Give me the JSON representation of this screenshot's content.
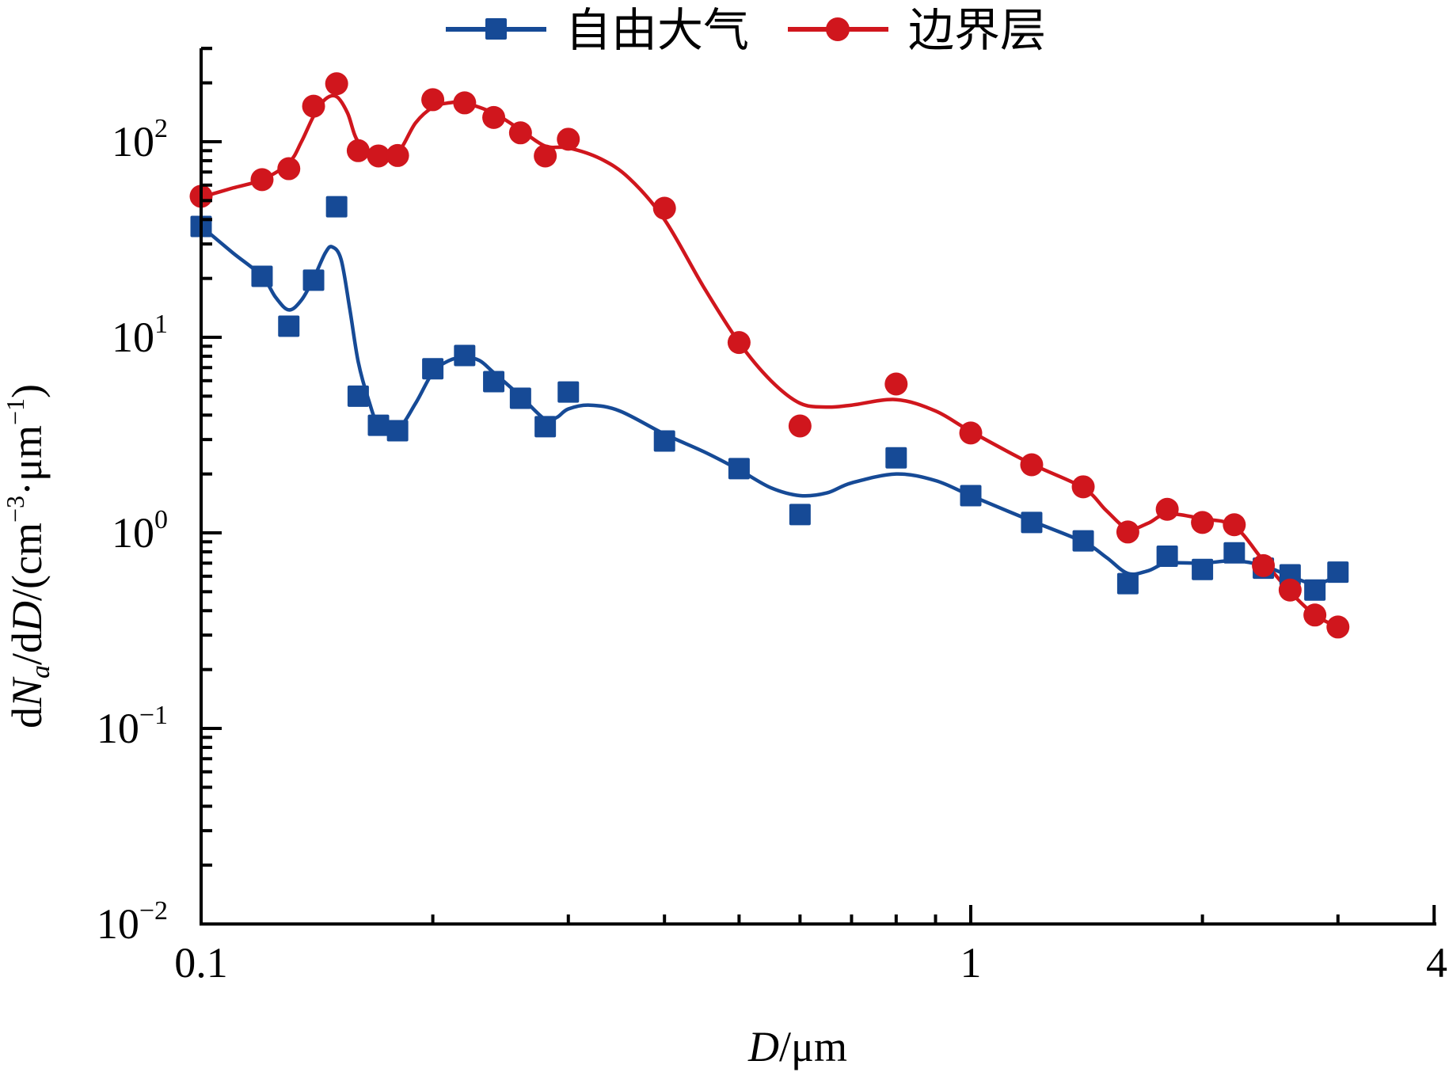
{
  "chart_data": {
    "type": "line",
    "title": "",
    "xlabel": {
      "italic": "D",
      "rest": "/μm"
    },
    "ylabel": {
      "p1": "d",
      "p2": "N",
      "p3": "a",
      "p4": "/d",
      "p5": "D",
      "p6": "/(cm",
      "p7": "−3",
      "p8": "·μm",
      "p9": "−1",
      "p10": ")"
    },
    "xscale": "log",
    "yscale": "log",
    "xlim": [
      0.1,
      4
    ],
    "ylim": [
      0.01,
      300
    ],
    "x_ticks": [
      {
        "value": 0.1,
        "label": "0.1"
      },
      {
        "value": 1,
        "label": "1"
      },
      {
        "value": 4,
        "label": "4"
      }
    ],
    "y_ticks": [
      {
        "value": 100,
        "base": "10",
        "exp": "2"
      },
      {
        "value": 10,
        "base": "10",
        "exp": "1"
      },
      {
        "value": 1,
        "base": "10",
        "exp": "0"
      },
      {
        "value": 0.1,
        "base": "10",
        "exp": "−1"
      },
      {
        "value": 0.01,
        "base": "10",
        "exp": "−2"
      }
    ],
    "grid": false,
    "legend_position": "top-center",
    "series": [
      {
        "name": "自由大气",
        "color": "#164a96",
        "marker": "square",
        "x": [
          0.1,
          0.12,
          0.13,
          0.14,
          0.15,
          0.16,
          0.17,
          0.18,
          0.2,
          0.22,
          0.24,
          0.26,
          0.28,
          0.3,
          0.4,
          0.5,
          0.6,
          0.8,
          1.0,
          1.2,
          1.4,
          1.6,
          1.8,
          2.0,
          2.2,
          2.4,
          2.6,
          2.8,
          3.0
        ],
        "y": [
          36.9,
          20.5,
          11.4,
          19.6,
          46.5,
          5.0,
          3.55,
          3.33,
          6.9,
          8.07,
          5.93,
          4.88,
          3.49,
          5.25,
          2.95,
          2.13,
          1.24,
          2.42,
          1.55,
          1.13,
          0.91,
          0.55,
          0.76,
          0.65,
          0.79,
          0.66,
          0.61,
          0.51,
          0.63
        ],
        "fit_curve": {
          "x": [
            0.1,
            0.11,
            0.12,
            0.125,
            0.13,
            0.135,
            0.14,
            0.145,
            0.148,
            0.152,
            0.156,
            0.16,
            0.165,
            0.17,
            0.18,
            0.19,
            0.2,
            0.21,
            0.22,
            0.23,
            0.24,
            0.26,
            0.28,
            0.29,
            0.3,
            0.32,
            0.35,
            0.4,
            0.45,
            0.5,
            0.55,
            0.6,
            0.65,
            0.7,
            0.8,
            0.9,
            1.0,
            1.2,
            1.4,
            1.5,
            1.6,
            1.7,
            1.8,
            2.0,
            2.2,
            2.4,
            2.6,
            2.8,
            3.0
          ],
          "y": [
            37,
            27,
            20.5,
            16,
            13.8,
            15.5,
            20,
            27,
            29,
            25,
            14,
            7.5,
            4.8,
            3.6,
            3.4,
            4.6,
            6.6,
            7.6,
            7.9,
            7.6,
            6.6,
            5.0,
            3.8,
            3.9,
            4.3,
            4.5,
            4.2,
            3.2,
            2.6,
            2.1,
            1.7,
            1.55,
            1.6,
            1.8,
            2.0,
            1.85,
            1.55,
            1.15,
            0.9,
            0.75,
            0.62,
            0.64,
            0.7,
            0.7,
            0.72,
            0.68,
            0.6,
            0.55,
            0.6
          ]
        }
      },
      {
        "name": "边界层",
        "color": "#d0161d",
        "marker": "circle",
        "x": [
          0.1,
          0.12,
          0.13,
          0.14,
          0.15,
          0.16,
          0.17,
          0.18,
          0.2,
          0.22,
          0.24,
          0.26,
          0.28,
          0.3,
          0.4,
          0.5,
          0.6,
          0.8,
          1.0,
          1.2,
          1.4,
          1.6,
          1.8,
          2.0,
          2.2,
          2.4,
          2.6,
          2.8,
          3.0
        ],
        "y": [
          52.6,
          64,
          72.8,
          152,
          198,
          90,
          84.6,
          85,
          164,
          158,
          133,
          111,
          84.6,
          103,
          45.7,
          9.4,
          3.52,
          5.77,
          3.24,
          2.23,
          1.72,
          1.01,
          1.32,
          1.13,
          1.1,
          0.68,
          0.51,
          0.38,
          0.33
        ],
        "fit_curve": {
          "x": [
            0.1,
            0.11,
            0.12,
            0.13,
            0.135,
            0.14,
            0.145,
            0.15,
            0.155,
            0.16,
            0.17,
            0.18,
            0.19,
            0.2,
            0.21,
            0.22,
            0.24,
            0.26,
            0.28,
            0.3,
            0.33,
            0.36,
            0.4,
            0.45,
            0.5,
            0.55,
            0.6,
            0.65,
            0.7,
            0.8,
            0.9,
            1.0,
            1.2,
            1.4,
            1.5,
            1.6,
            1.7,
            1.8,
            2.0,
            2.2,
            2.4,
            2.6,
            2.8,
            3.0
          ],
          "y": [
            52,
            58,
            64,
            78,
            100,
            135,
            165,
            170,
            140,
            100,
            86,
            88,
            125,
            150,
            158,
            158,
            140,
            115,
            95,
            93,
            82,
            65,
            40,
            18,
            9.4,
            6.0,
            4.6,
            4.4,
            4.5,
            4.8,
            4.2,
            3.3,
            2.25,
            1.7,
            1.3,
            1.05,
            1.12,
            1.25,
            1.18,
            1.08,
            0.72,
            0.5,
            0.38,
            0.33
          ]
        }
      }
    ]
  }
}
